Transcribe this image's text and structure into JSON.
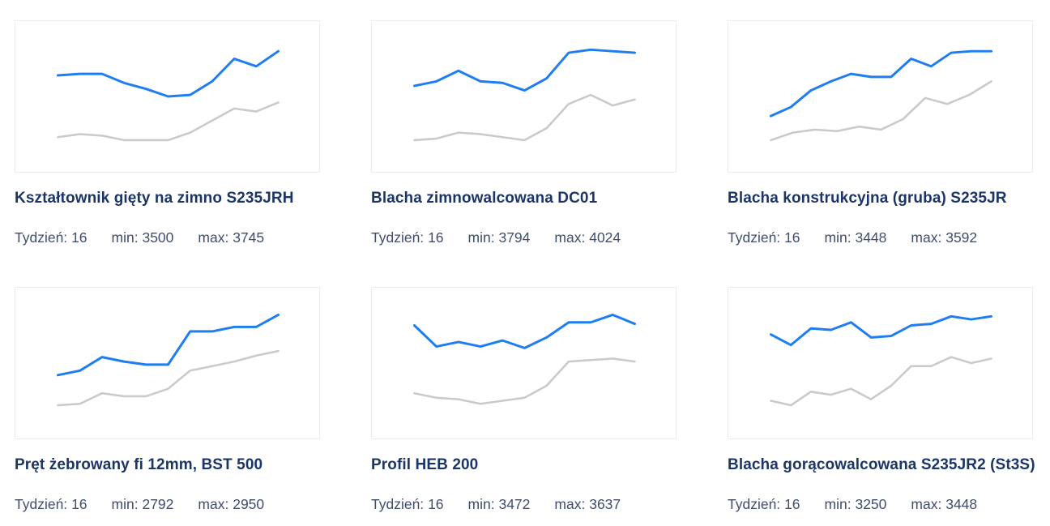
{
  "colors": {
    "blue": "#1d7df1",
    "gray": "#c8cace",
    "title_navy": "#1c3567",
    "stats_slate": "#3f4d6e",
    "card_border": "#ececec",
    "background": "#ffffff"
  },
  "products": [
    {
      "title": "Kształtownik gięty na zimno S235JRH",
      "stats": {
        "week_label": "Tydzień:",
        "week_value": "16",
        "min_label": "min:",
        "min_value": "3500",
        "max_label": "max:",
        "max_value": "3745"
      }
    },
    {
      "title": "Blacha zimnowalcowana DC01",
      "stats": {
        "week_label": "Tydzień:",
        "week_value": "16",
        "min_label": "min:",
        "min_value": "3794",
        "max_label": "max:",
        "max_value": "4024"
      }
    },
    {
      "title": "Blacha konstrukcyjna (gruba) S235JR",
      "stats": {
        "week_label": "Tydzień:",
        "week_value": "16",
        "min_label": "min:",
        "min_value": "3448",
        "max_label": "max:",
        "max_value": "3592"
      }
    },
    {
      "title": "Pręt żebrowany fi 12mm, BST 500",
      "stats": {
        "week_label": "Tydzień:",
        "week_value": "16",
        "min_label": "min:",
        "min_value": "2792",
        "max_label": "max:",
        "max_value": "2950"
      }
    },
    {
      "title": "Profil HEB 200",
      "stats": {
        "week_label": "Tydzień:",
        "week_value": "16",
        "min_label": "min:",
        "min_value": "3472",
        "max_label": "max:",
        "max_value": "3637"
      }
    },
    {
      "title": "Blacha gorącowalcowana S235JR2 (St3S)",
      "stats": {
        "week_label": "Tydzień:",
        "week_value": "16",
        "min_label": "min:",
        "min_value": "3250",
        "max_label": "max:",
        "max_value": "3448"
      }
    }
  ],
  "chart_data": [
    {
      "type": "line",
      "title": "Kształtownik gięty na zimno S235JRH",
      "axes_hidden": true,
      "y_scale": "normalized 0-1 (no axis labels shown in sparkline)",
      "series": [
        {
          "name": "blue",
          "color": "blue",
          "values": [
            0.64,
            0.65,
            0.65,
            0.59,
            0.55,
            0.5,
            0.51,
            0.6,
            0.75,
            0.7,
            0.8
          ]
        },
        {
          "name": "gray",
          "color": "gray",
          "values": [
            0.23,
            0.25,
            0.24,
            0.21,
            0.21,
            0.21,
            0.26,
            0.34,
            0.42,
            0.4,
            0.46
          ]
        }
      ]
    },
    {
      "type": "line",
      "title": "Blacha zimnowalcowana DC01",
      "axes_hidden": true,
      "y_scale": "normalized 0-1 (no axis labels shown in sparkline)",
      "series": [
        {
          "name": "blue",
          "color": "blue",
          "values": [
            0.57,
            0.6,
            0.67,
            0.6,
            0.59,
            0.54,
            0.62,
            0.79,
            0.81,
            0.8,
            0.79
          ]
        },
        {
          "name": "gray",
          "color": "gray",
          "values": [
            0.21,
            0.22,
            0.26,
            0.25,
            0.23,
            0.21,
            0.29,
            0.45,
            0.51,
            0.44,
            0.48
          ]
        }
      ]
    },
    {
      "type": "line",
      "title": "Blacha konstrukcyjna (gruba) S235JR",
      "axes_hidden": true,
      "y_scale": "normalized 0-1 (no axis labels shown in sparkline)",
      "series": [
        {
          "name": "blue",
          "color": "blue",
          "values": [
            0.37,
            0.43,
            0.54,
            0.6,
            0.65,
            0.63,
            0.63,
            0.75,
            0.7,
            0.79,
            0.8,
            0.8
          ]
        },
        {
          "name": "gray",
          "color": "gray",
          "values": [
            0.21,
            0.26,
            0.28,
            0.27,
            0.3,
            0.28,
            0.35,
            0.49,
            0.45,
            0.51,
            0.6
          ]
        }
      ]
    },
    {
      "type": "line",
      "title": "Pręt żebrowany fi 12mm, BST 500",
      "axes_hidden": true,
      "y_scale": "normalized 0-1 (no axis labels shown in sparkline)",
      "series": [
        {
          "name": "blue",
          "color": "blue",
          "values": [
            0.42,
            0.45,
            0.54,
            0.51,
            0.49,
            0.49,
            0.71,
            0.71,
            0.74,
            0.74,
            0.82
          ]
        },
        {
          "name": "gray",
          "color": "gray",
          "values": [
            0.22,
            0.23,
            0.3,
            0.28,
            0.28,
            0.33,
            0.45,
            0.48,
            0.51,
            0.55,
            0.58
          ]
        }
      ]
    },
    {
      "type": "line",
      "title": "Profil HEB 200",
      "axes_hidden": true,
      "y_scale": "normalized 0-1 (no axis labels shown in sparkline)",
      "series": [
        {
          "name": "blue",
          "color": "blue",
          "values": [
            0.75,
            0.61,
            0.64,
            0.61,
            0.65,
            0.6,
            0.67,
            0.77,
            0.77,
            0.82,
            0.76
          ]
        },
        {
          "name": "gray",
          "color": "gray",
          "values": [
            0.3,
            0.27,
            0.26,
            0.23,
            0.25,
            0.27,
            0.35,
            0.51,
            0.52,
            0.53,
            0.51
          ]
        }
      ]
    },
    {
      "type": "line",
      "title": "Blacha gorącowalcowana S235JR2 (St3S)",
      "axes_hidden": true,
      "y_scale": "normalized 0-1 (no axis labels shown in sparkline)",
      "series": [
        {
          "name": "blue",
          "color": "blue",
          "values": [
            0.69,
            0.62,
            0.73,
            0.72,
            0.77,
            0.67,
            0.68,
            0.75,
            0.76,
            0.81,
            0.79,
            0.81
          ]
        },
        {
          "name": "gray",
          "color": "gray",
          "values": [
            0.25,
            0.22,
            0.31,
            0.29,
            0.33,
            0.26,
            0.35,
            0.48,
            0.48,
            0.54,
            0.5,
            0.53
          ]
        }
      ]
    }
  ]
}
